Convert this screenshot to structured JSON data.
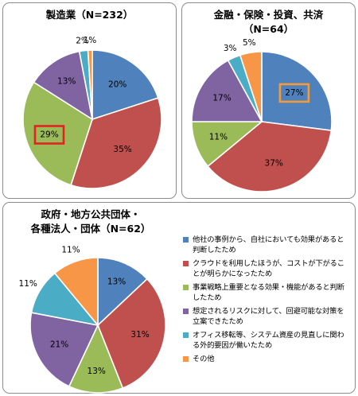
{
  "colors": [
    "#4f81bd",
    "#c0504d",
    "#9bbb59",
    "#8064a2",
    "#4bacc6",
    "#f79646"
  ],
  "highlight_color_1": "#e32222",
  "highlight_color_2": "#f39b3a",
  "legend": [
    "他社の事例から、自社においても効果があると判断したため",
    "クラウドを利用したほうが、コストが下がることが明らかになったため",
    "事業戦略上重要となる効果・機能があると判断したため",
    "想定されるリスクに対して、回避可能な対策を立案できたため",
    "オフィス移転等、システム資産の見直しに関わる外的要因が働いたため",
    "その他"
  ],
  "chart_data": [
    {
      "type": "pie",
      "title": "製造業（N=232）",
      "values": [
        20,
        35,
        29,
        13,
        2,
        1
      ],
      "labels": [
        "20%",
        "35%",
        "29%",
        "13%",
        "2%",
        "1%"
      ],
      "highlighted": "29%"
    },
    {
      "type": "pie",
      "title_lines": [
        "金融・保険・投資、共済",
        "（N=64）"
      ],
      "values": [
        27,
        37,
        11,
        17,
        3,
        5
      ],
      "labels": [
        "27%",
        "37%",
        "11%",
        "17%",
        "3%",
        "5%"
      ],
      "highlighted": "27%"
    },
    {
      "type": "pie",
      "title_lines": [
        "政府・地方公共団体・",
        "各種法人・団体（N=62）"
      ],
      "values": [
        13,
        31,
        13,
        21,
        11,
        11
      ],
      "labels": [
        "13%",
        "31%",
        "13%",
        "21%",
        "11%",
        "11%"
      ]
    }
  ]
}
